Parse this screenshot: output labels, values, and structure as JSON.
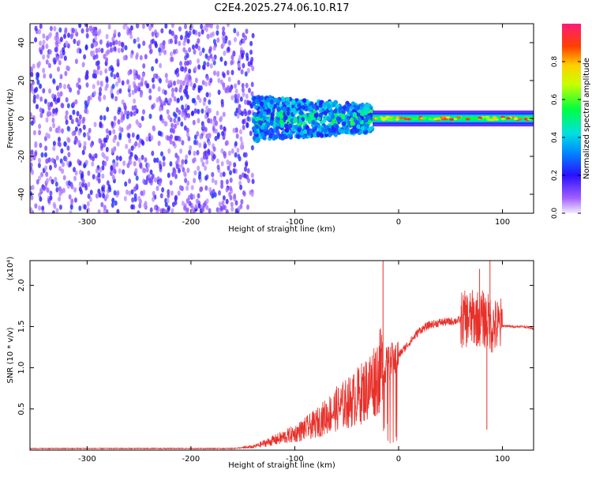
{
  "title": "C2E4.2025.274.06.10.R17",
  "chart_data": [
    {
      "type": "heatmap",
      "xlabel": "Height of straight line (km)",
      "ylabel": "Frequency (Hz)",
      "xlim": [
        -355,
        130
      ],
      "ylim": [
        -50,
        50
      ],
      "xticks": [
        -300,
        -200,
        -100,
        0,
        100
      ],
      "yticks": [
        -40,
        -20,
        0,
        20,
        40
      ],
      "grid": false,
      "colorbar": {
        "label": "Normalized spectral amplitude",
        "range": [
          0.0,
          1.0
        ],
        "ticks": [
          "0.0",
          "0.2",
          "0.4",
          "0.6",
          "0.8"
        ]
      },
      "regions": [
        {
          "x_range": [
            -355,
            -140
          ],
          "freq_range": [
            -50,
            50
          ],
          "amplitude_range": [
            0.05,
            0.25
          ]
        },
        {
          "x_range": [
            -140,
            -25
          ],
          "freq_range": [
            -12,
            12
          ],
          "amplitude_range": [
            0.2,
            0.45
          ]
        },
        {
          "x_range": [
            -25,
            130
          ],
          "freq_range": [
            -4,
            4
          ],
          "amplitude_range": [
            0.3,
            0.95
          ]
        }
      ]
    },
    {
      "type": "line",
      "xlabel": "Height of straight line (km)",
      "ylabel": "SNR (10 * v/v)",
      "multiplier": "(x10⁴)",
      "xlim": [
        -355,
        130
      ],
      "ylim": [
        0,
        2.3
      ],
      "xticks": [
        -300,
        -200,
        -100,
        0,
        100
      ],
      "yticks": [
        "0.5",
        "1.0",
        "1.5",
        "2.0"
      ],
      "grid": false,
      "series": [
        {
          "color": "#e8302a",
          "x": [
            -355,
            -300,
            -250,
            -200,
            -160,
            -140,
            -120,
            -100,
            -80,
            -60,
            -45,
            -30,
            -20,
            -15,
            -10,
            0,
            10,
            20,
            30,
            40,
            50,
            60,
            70,
            80,
            88,
            90,
            95,
            100,
            110,
            120,
            130
          ],
          "y": [
            0.02,
            0.02,
            0.02,
            0.02,
            0.02,
            0.04,
            0.12,
            0.2,
            0.32,
            0.5,
            0.6,
            0.75,
            0.92,
            1.0,
            1.05,
            1.15,
            1.3,
            1.45,
            1.52,
            1.55,
            1.56,
            1.58,
            1.6,
            1.6,
            1.55,
            1.5,
            1.5,
            1.51,
            1.5,
            1.5,
            1.48
          ],
          "spikes": [
            {
              "x": -15,
              "y": 2.3
            },
            {
              "x": 85,
              "y": 0.25
            },
            {
              "x": 88,
              "y": 2.3
            },
            {
              "x": 78,
              "y": 2.2
            }
          ]
        }
      ]
    }
  ]
}
